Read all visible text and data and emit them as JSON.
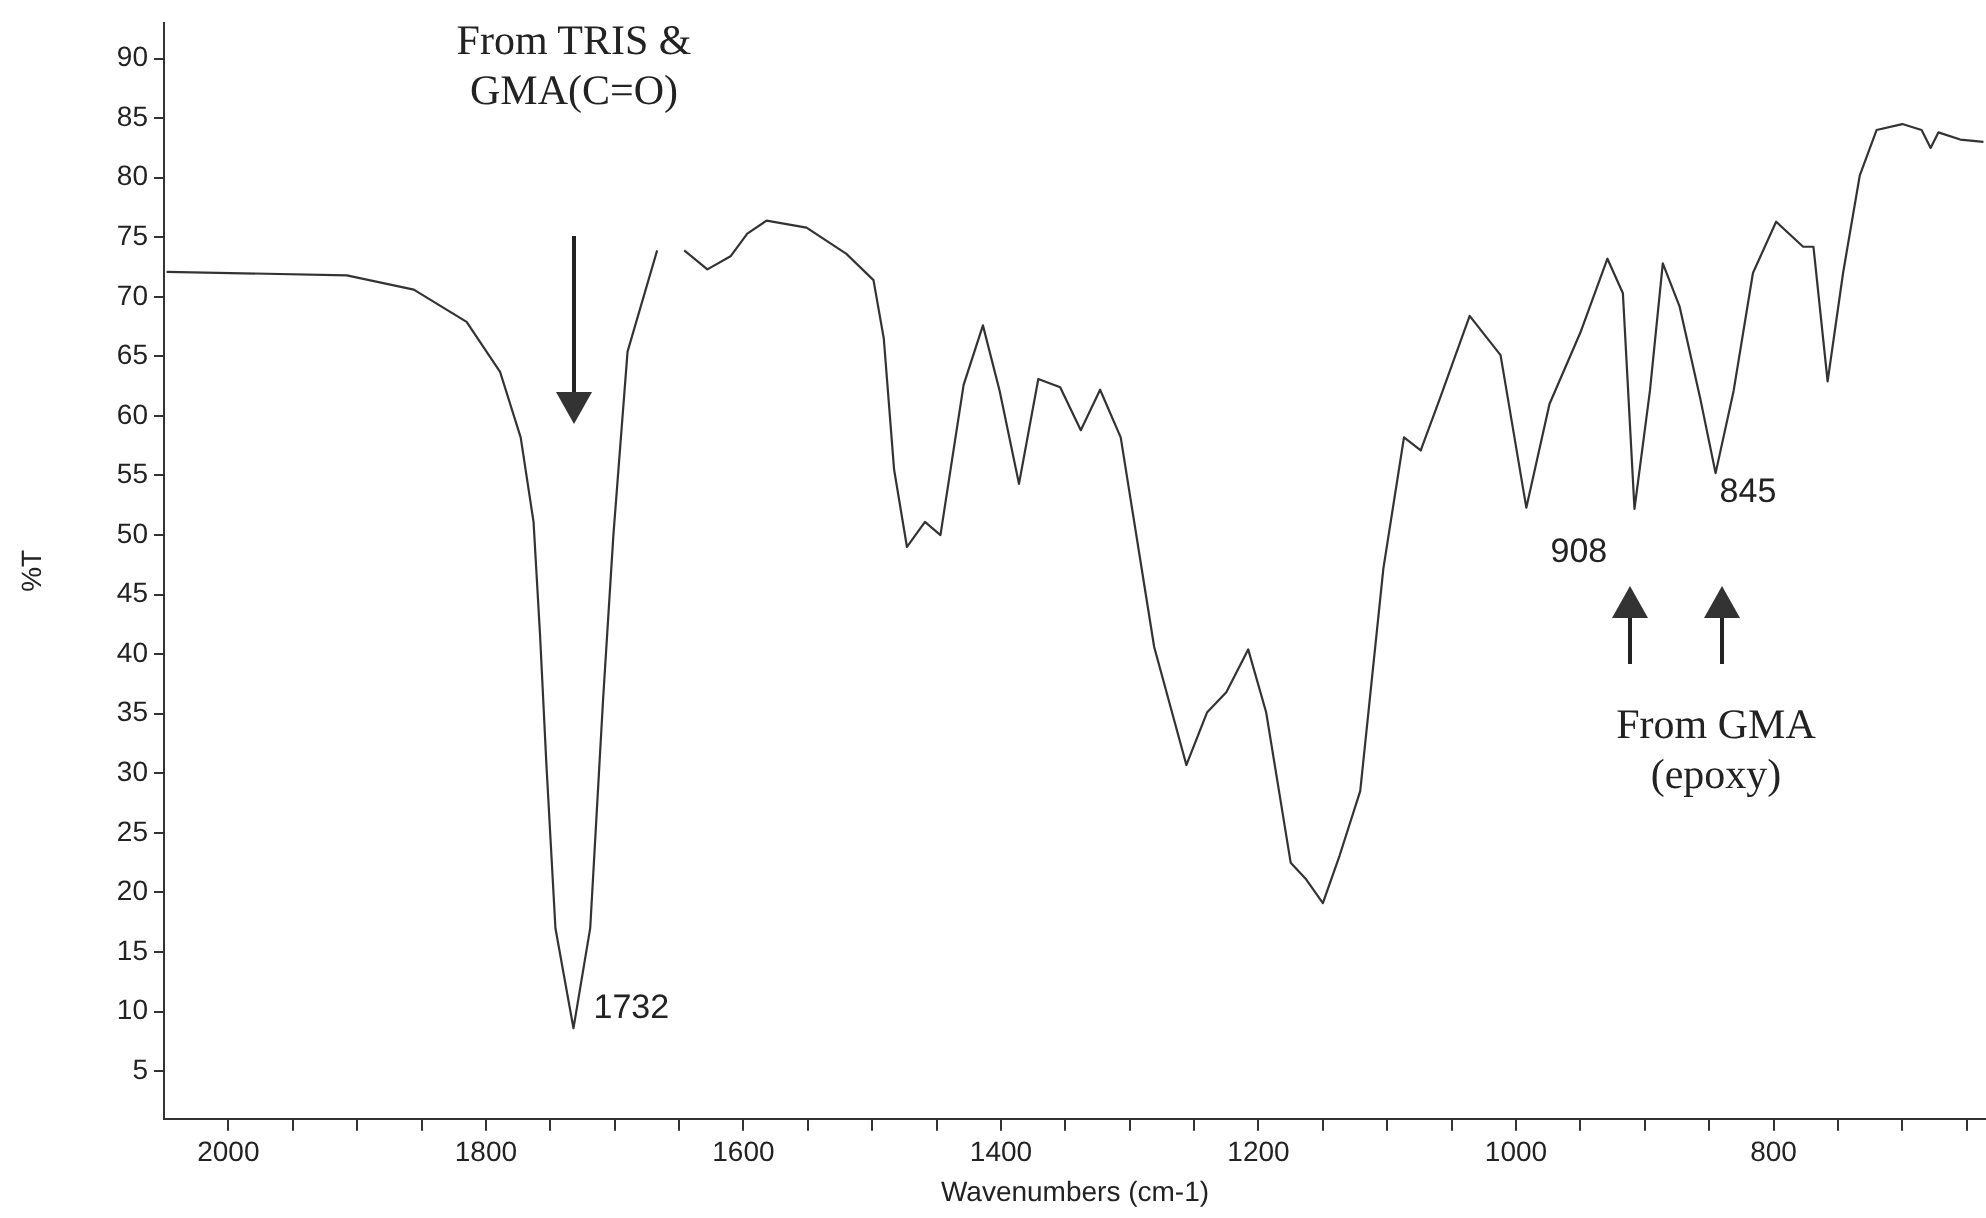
{
  "chart_data": {
    "type": "line",
    "xlabel": "Wavenumbers (cm-1)",
    "ylabel": "%T",
    "xlim": [
      2050,
      635
    ],
    "ylim": [
      1,
      93
    ],
    "xticks": [
      {
        "value": 2000,
        "label": "2000"
      },
      {
        "value": 1950,
        "label": null
      },
      {
        "value": 1900,
        "label": null
      },
      {
        "value": 1850,
        "label": null
      },
      {
        "value": 1800,
        "label": "1800"
      },
      {
        "value": 1750,
        "label": null
      },
      {
        "value": 1700,
        "label": null
      },
      {
        "value": 1650,
        "label": null
      },
      {
        "value": 1600,
        "label": "1600"
      },
      {
        "value": 1550,
        "label": null
      },
      {
        "value": 1500,
        "label": null
      },
      {
        "value": 1450,
        "label": null
      },
      {
        "value": 1400,
        "label": "1400"
      },
      {
        "value": 1350,
        "label": null
      },
      {
        "value": 1300,
        "label": null
      },
      {
        "value": 1250,
        "label": null
      },
      {
        "value": 1200,
        "label": "1200"
      },
      {
        "value": 1150,
        "label": null
      },
      {
        "value": 1100,
        "label": null
      },
      {
        "value": 1050,
        "label": null
      },
      {
        "value": 1000,
        "label": "1000"
      },
      {
        "value": 950,
        "label": null
      },
      {
        "value": 900,
        "label": null
      },
      {
        "value": 850,
        "label": null
      },
      {
        "value": 800,
        "label": "800"
      },
      {
        "value": 750,
        "label": null
      },
      {
        "value": 700,
        "label": null
      },
      {
        "value": 650,
        "label": null
      }
    ],
    "yticks": [
      5,
      10,
      15,
      20,
      25,
      30,
      35,
      40,
      45,
      50,
      55,
      60,
      65,
      70,
      75,
      80,
      85,
      90
    ],
    "grid": false,
    "legend": false,
    "marker": "none",
    "line_style": "solid",
    "series": [
      {
        "color": "#333333",
        "x": [
          2048,
          1908,
          1856,
          1815,
          1789,
          1773,
          1763,
          1758,
          1753,
          1746,
          1732,
          1719,
          1709,
          1701,
          1690,
          1667,
          1657,
          1646,
          1628,
          1610,
          1597,
          1582,
          1551,
          1520,
          1499,
          1491,
          1483,
          1473,
          1459,
          1447,
          1429,
          1414,
          1401,
          1386,
          1371,
          1354,
          1338,
          1323,
          1307,
          1281,
          1256,
          1240,
          1225,
          1208,
          1194,
          1175,
          1163,
          1150,
          1137,
          1121,
          1103,
          1087,
          1074,
          1059,
          1036,
          1012,
          992,
          974,
          950,
          929,
          917,
          908,
          896,
          886,
          873,
          857,
          845,
          831,
          816,
          798,
          777,
          769,
          758,
          746,
          733,
          720,
          700,
          685,
          678,
          672,
          655,
          637
        ],
        "values": [
          72.1,
          71.8,
          70.6,
          67.9,
          63.7,
          58.2,
          51.1,
          41.7,
          30.7,
          17,
          8.6,
          17,
          36.2,
          50,
          65.4,
          73.9,
          null,
          73.9,
          72.3,
          73.4,
          75.3,
          76.4,
          75.8,
          73.6,
          71.4,
          66.5,
          55.5,
          49,
          51.1,
          50,
          62.6,
          67.6,
          62.1,
          54.3,
          63.1,
          62.4,
          58.8,
          62.2,
          58.2,
          40.6,
          30.7,
          35.1,
          36.8,
          40.4,
          35.1,
          22.5,
          21.1,
          19.1,
          23.1,
          28.5,
          47.2,
          58.2,
          57.1,
          61.5,
          68.4,
          65.1,
          52.3,
          61,
          67,
          73.2,
          70.3,
          52.2,
          62.1,
          72.8,
          69.2,
          61.5,
          55.2,
          62.1,
          72,
          76.3,
          74.2,
          74.2,
          62.9,
          72,
          80.2,
          84,
          84.5,
          84,
          82.5,
          83.8,
          83.2,
          83
        ]
      }
    ],
    "annotations": [
      "From TRIS & GMA(C=O)",
      {
        "text": "1732",
        "x": 1732,
        "y": 8.6
      },
      {
        "text": "908",
        "x": 908,
        "y": 52.2
      },
      {
        "text": "845",
        "x": 845,
        "y": 55.2
      },
      "From GMA (epoxy)"
    ]
  }
}
